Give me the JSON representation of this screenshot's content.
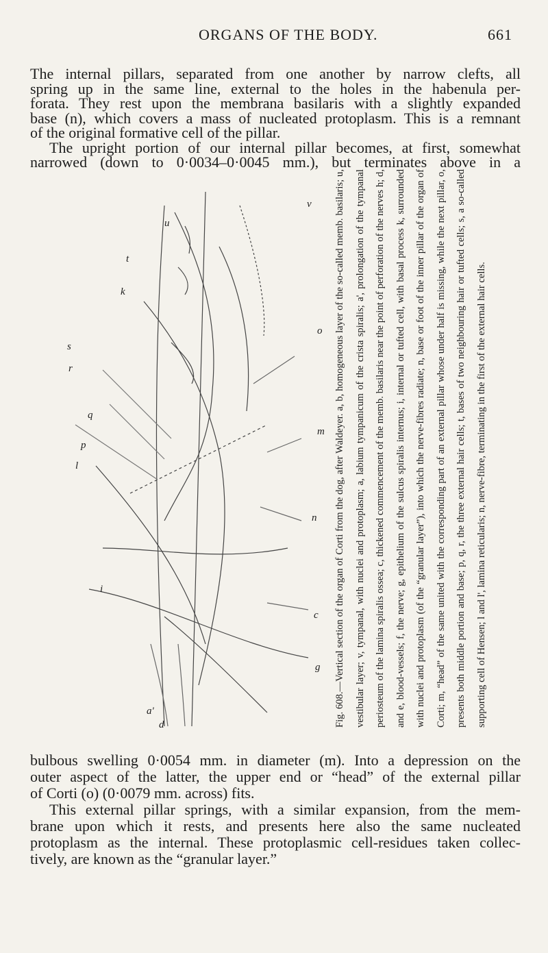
{
  "header": {
    "title": "ORGANS OF THE BODY.",
    "page_number": "661"
  },
  "top_text": {
    "lines": [
      "The internal pillars, separated from one another by narrow clefts, all",
      "spring up in the same line, external to the holes in the habenula per-",
      "forata. They rest upon the membrana basilaris with a slightly expanded",
      "base (n), which covers a mass of nucleated protoplasm. This is a remnant",
      "of the original formative cell of the pillar.",
      "The upright portion of our internal pillar becomes, at first, somewhat",
      "narrowed (down to 0·0034–0·0045 mm.), but terminates above in a"
    ]
  },
  "figure": {
    "labels": [
      "u",
      "v",
      "t",
      "k",
      "s",
      "o",
      "r",
      "q",
      "p",
      "m",
      "l",
      "n",
      "i",
      "c",
      "g",
      "a'",
      "d"
    ],
    "caption": "Fig. 608.—Vertical section of the organ of Corti from the dog, after Waldeyer. a, b, homogeneous layer of the so-called memb. basilaris; u, vestibular layer; v, tympanal, with nuclei and protoplasm; a, labium tympanicum of the crista spiralis; a', prolongation of the tympanal periosteum of the lamina spiralis ossea; c, thickened commencement of the memb. basilaris near the point of perforation of the nerves h; d, and e, blood-vessels; f, the nerve; g, epithelium of the sulcus spiralis internus; i, internal or tufted cell, with basal process k, surrounded with nuclei and protoplasm (of the “granular layer”), into which the nerve-fibres radiate; n, base or foot of the inner pillar of the organ of Corti; m, “head” of the same united with the corresponding part of an external pillar whose under half is missing, while the next pillar, o, presents both middle portion and base; p, q, r, the three external hair cells; t, bases of two neighbouring hair or tufted cells; s, a so-called supporting cell of Hensen; l and l', lamina reticularis; n, nerve-fibre, terminating in the first of the external hair cells."
  },
  "bottom_text": {
    "lines": [
      "bulbous swelling 0·0054 mm. in diameter (m). Into a depression on the",
      "outer aspect of the latter, the upper end or “head” of the external pillar",
      "of Corti (o) (0·0079 mm. across) fits.",
      "This external pillar springs, with a similar expansion, from the mem-",
      "brane upon which it rests, and presents here also the same nucleated",
      "protoplasm as the internal. These protoplasmic cell-residues taken collec-",
      "tively, are known as the “granular layer.”"
    ]
  }
}
